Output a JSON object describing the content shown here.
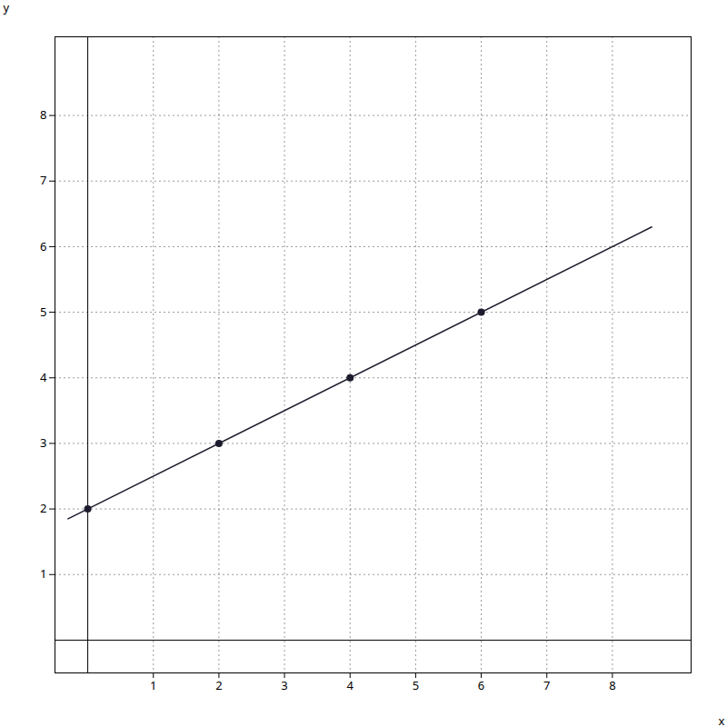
{
  "chart_data": {
    "type": "scatter",
    "xlabel": "x",
    "ylabel": "y",
    "xlim": [
      -0.5,
      9.2
    ],
    "ylim": [
      -0.5,
      9.2
    ],
    "xticks": [
      1,
      2,
      3,
      4,
      5,
      6,
      7,
      8
    ],
    "yticks": [
      1,
      2,
      3,
      4,
      5,
      6,
      7,
      8
    ],
    "grid": true,
    "series": [
      {
        "type": "scatter",
        "marker": "circle",
        "color": "#1c1c2e",
        "x": [
          0,
          2,
          4,
          6
        ],
        "values": [
          2,
          3,
          4,
          5
        ]
      },
      {
        "type": "line",
        "line_style": "solid",
        "color": "#1c1c2e",
        "x": [
          -0.3,
          8.6
        ],
        "values": [
          1.85,
          6.3
        ]
      }
    ]
  }
}
